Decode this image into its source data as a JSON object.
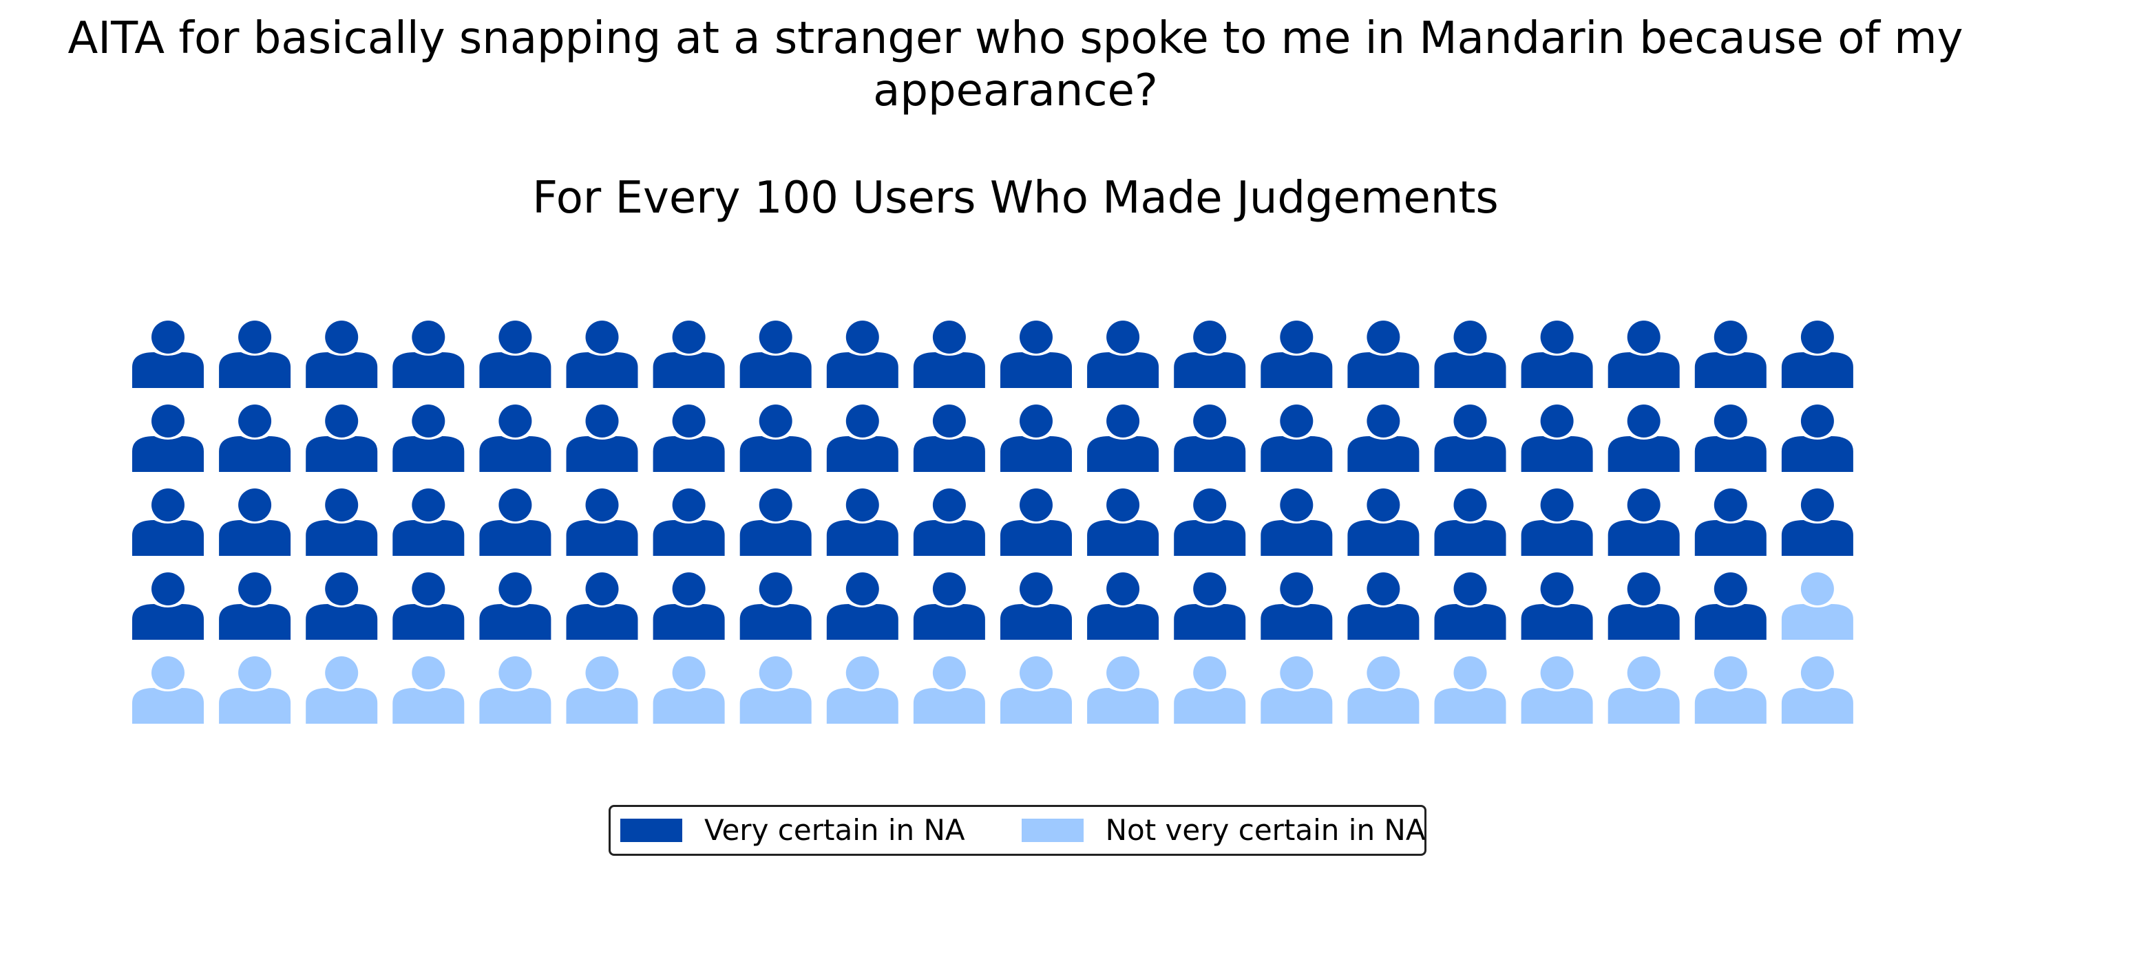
{
  "chart_data": {
    "type": "waffle",
    "title": "AITA for basically snapping at a stranger who spoke to me in Mandarin because of my appearance?",
    "subtitle": "For Every 100 Users Who Made Judgements",
    "total": 100,
    "rows": 5,
    "columns": 20,
    "icon": "person-icon",
    "series": [
      {
        "name": "Very certain in NA",
        "value": 79,
        "color": "#0044aa"
      },
      {
        "name": "Not very certain in NA",
        "value": 21,
        "color": "#9ec9ff"
      }
    ],
    "legend_position": "bottom-center"
  }
}
